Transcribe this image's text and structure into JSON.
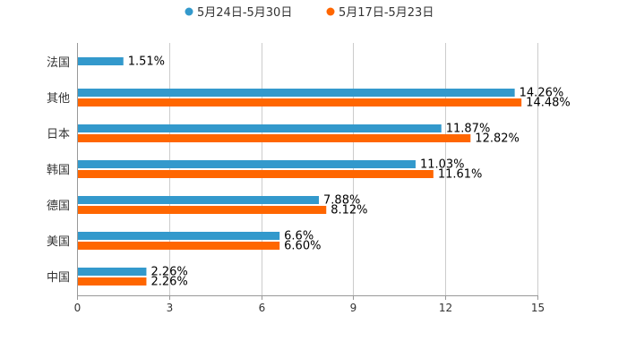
{
  "chart_data": {
    "type": "bar",
    "orientation": "horizontal",
    "categories": [
      "法国",
      "其他",
      "日本",
      "韩国",
      "德国",
      "美国",
      "中国"
    ],
    "series": [
      {
        "name": "5月24日-5月30日",
        "color": "#3399cc",
        "values": [
          1.51,
          14.26,
          11.87,
          11.03,
          7.88,
          6.6,
          2.26
        ],
        "labels": [
          "1.51%",
          "14.26%",
          "11.87%",
          "11.03%",
          "7.88%",
          "6.6%",
          "2.26%"
        ]
      },
      {
        "name": "5月17日-5月23日",
        "color": "#ff6600",
        "values": [
          null,
          14.48,
          12.82,
          11.61,
          8.12,
          6.6,
          2.26
        ],
        "labels": [
          "",
          "14.48%",
          "12.82%",
          "11.61%",
          "8.12%",
          "6.60%",
          "2.26%"
        ]
      }
    ],
    "xticks": [
      "0",
      "3",
      "6",
      "9",
      "12",
      "15"
    ],
    "xlim": [
      0,
      15
    ],
    "title": "",
    "xlabel": "",
    "ylabel": "",
    "legend": "top-center",
    "grid": true
  }
}
